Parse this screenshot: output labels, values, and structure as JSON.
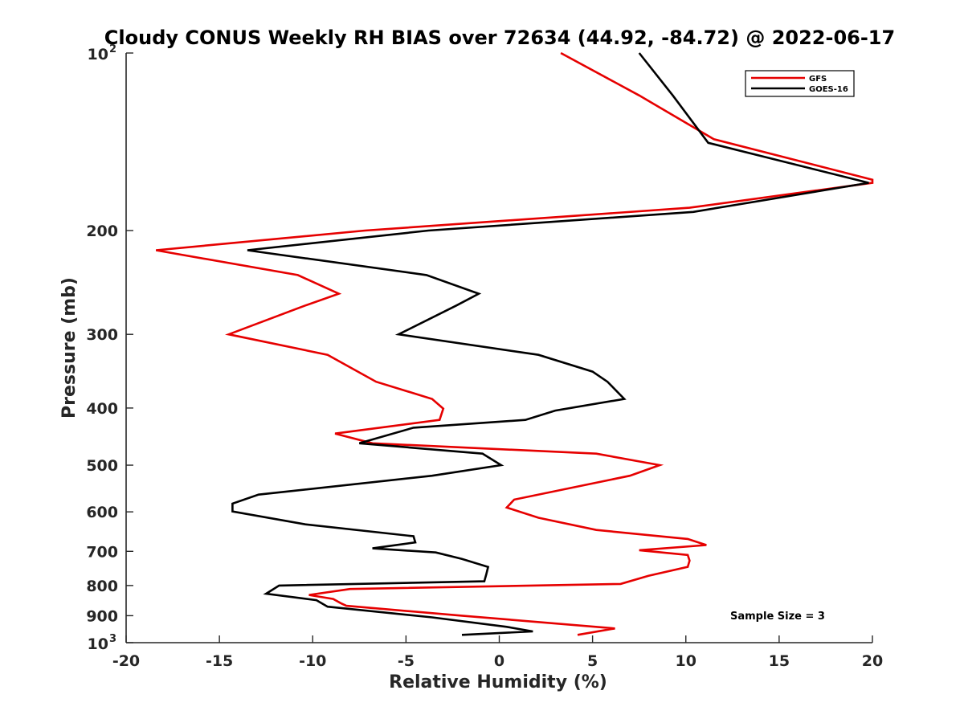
{
  "chart_data": {
    "type": "line",
    "title": "Cloudy CONUS Weekly RH BIAS over 72634 (44.92, -84.72) @ 2022-06-17",
    "xlabel": "Relative Humidity (%)",
    "ylabel": "Pressure (mb)",
    "xlim": [
      -20,
      20
    ],
    "ylim": [
      100,
      1000
    ],
    "y_scale": "log",
    "y_reversed": true,
    "grid": false,
    "legend_position": "top-right",
    "x_ticks": [
      "-20",
      "-15",
      "-10",
      "-5",
      "0",
      "5",
      "10",
      "15",
      "20"
    ],
    "y_ticks": [
      {
        "value": 100,
        "label": "10",
        "exp": "2"
      },
      {
        "value": 200,
        "label": "200",
        "exp": ""
      },
      {
        "value": 300,
        "label": "300",
        "exp": ""
      },
      {
        "value": 400,
        "label": "400",
        "exp": ""
      },
      {
        "value": 500,
        "label": "500",
        "exp": ""
      },
      {
        "value": 600,
        "label": "600",
        "exp": ""
      },
      {
        "value": 700,
        "label": "700",
        "exp": ""
      },
      {
        "value": 800,
        "label": "800",
        "exp": ""
      },
      {
        "value": 900,
        "label": "900",
        "exp": ""
      },
      {
        "value": 1000,
        "label": "10",
        "exp": "3"
      }
    ],
    "annotation": "Sample Size = 3",
    "series": [
      {
        "name": "GFS",
        "color": "#e60000",
        "points": [
          [
            3.3,
            100
          ],
          [
            7.5,
            118
          ],
          [
            11.5,
            140
          ],
          [
            20.0,
            164
          ],
          [
            20.0,
            166
          ],
          [
            10.2,
            183
          ],
          [
            -7.2,
            200
          ],
          [
            -18.4,
            216
          ],
          [
            -10.8,
            238
          ],
          [
            -8.6,
            256
          ],
          [
            -10.4,
            268
          ],
          [
            -14.5,
            300
          ],
          [
            -9.2,
            325
          ],
          [
            -6.6,
            361
          ],
          [
            -3.6,
            386
          ],
          [
            -3.0,
            401
          ],
          [
            -3.2,
            419
          ],
          [
            -8.8,
            442
          ],
          [
            -6.8,
            459
          ],
          [
            5.2,
            478
          ],
          [
            8.6,
            500
          ],
          [
            7.0,
            521
          ],
          [
            0.8,
            572
          ],
          [
            0.4,
            590
          ],
          [
            2.1,
            614
          ],
          [
            5.2,
            644
          ],
          [
            10.1,
            667
          ],
          [
            11.1,
            683
          ],
          [
            7.5,
            697
          ],
          [
            10.1,
            710
          ],
          [
            10.2,
            726
          ],
          [
            10.1,
            744
          ],
          [
            8.0,
            770
          ],
          [
            6.5,
            795
          ],
          [
            -8.0,
            811
          ],
          [
            -10.2,
            830
          ],
          [
            -8.9,
            843
          ],
          [
            -8.5,
            857
          ],
          [
            -8.2,
            866
          ],
          [
            -2.0,
            900
          ],
          [
            6.2,
            946
          ],
          [
            4.2,
            970
          ]
        ]
      },
      {
        "name": "GOES-16",
        "color": "#000000",
        "points": [
          [
            7.5,
            100
          ],
          [
            9.3,
            118
          ],
          [
            11.2,
            142
          ],
          [
            19.8,
            166
          ],
          [
            10.4,
            186
          ],
          [
            -3.8,
            200
          ],
          [
            -13.5,
            216
          ],
          [
            -3.9,
            238
          ],
          [
            -1.1,
            256
          ],
          [
            -2.3,
            268
          ],
          [
            -5.4,
            300
          ],
          [
            2.1,
            325
          ],
          [
            5.0,
            347
          ],
          [
            5.8,
            361
          ],
          [
            6.7,
            386
          ],
          [
            3.0,
            404
          ],
          [
            1.4,
            419
          ],
          [
            -4.6,
            432
          ],
          [
            -7.5,
            459
          ],
          [
            -0.9,
            478
          ],
          [
            0.1,
            500
          ],
          [
            -3.6,
            521
          ],
          [
            -12.9,
            561
          ],
          [
            -14.3,
            581
          ],
          [
            -14.3,
            599
          ],
          [
            -10.4,
            630
          ],
          [
            -4.6,
            660
          ],
          [
            -4.5,
            676
          ],
          [
            -6.8,
            692
          ],
          [
            -3.4,
            703
          ],
          [
            -2.0,
            721
          ],
          [
            -0.6,
            744
          ],
          [
            -0.7,
            767
          ],
          [
            -0.8,
            787
          ],
          [
            -11.8,
            800
          ],
          [
            -12.5,
            826
          ],
          [
            -9.8,
            847
          ],
          [
            -9.2,
            869
          ],
          [
            -3.6,
            906
          ],
          [
            0.4,
            940
          ],
          [
            1.8,
            957
          ],
          [
            -2.0,
            970
          ]
        ]
      }
    ]
  }
}
